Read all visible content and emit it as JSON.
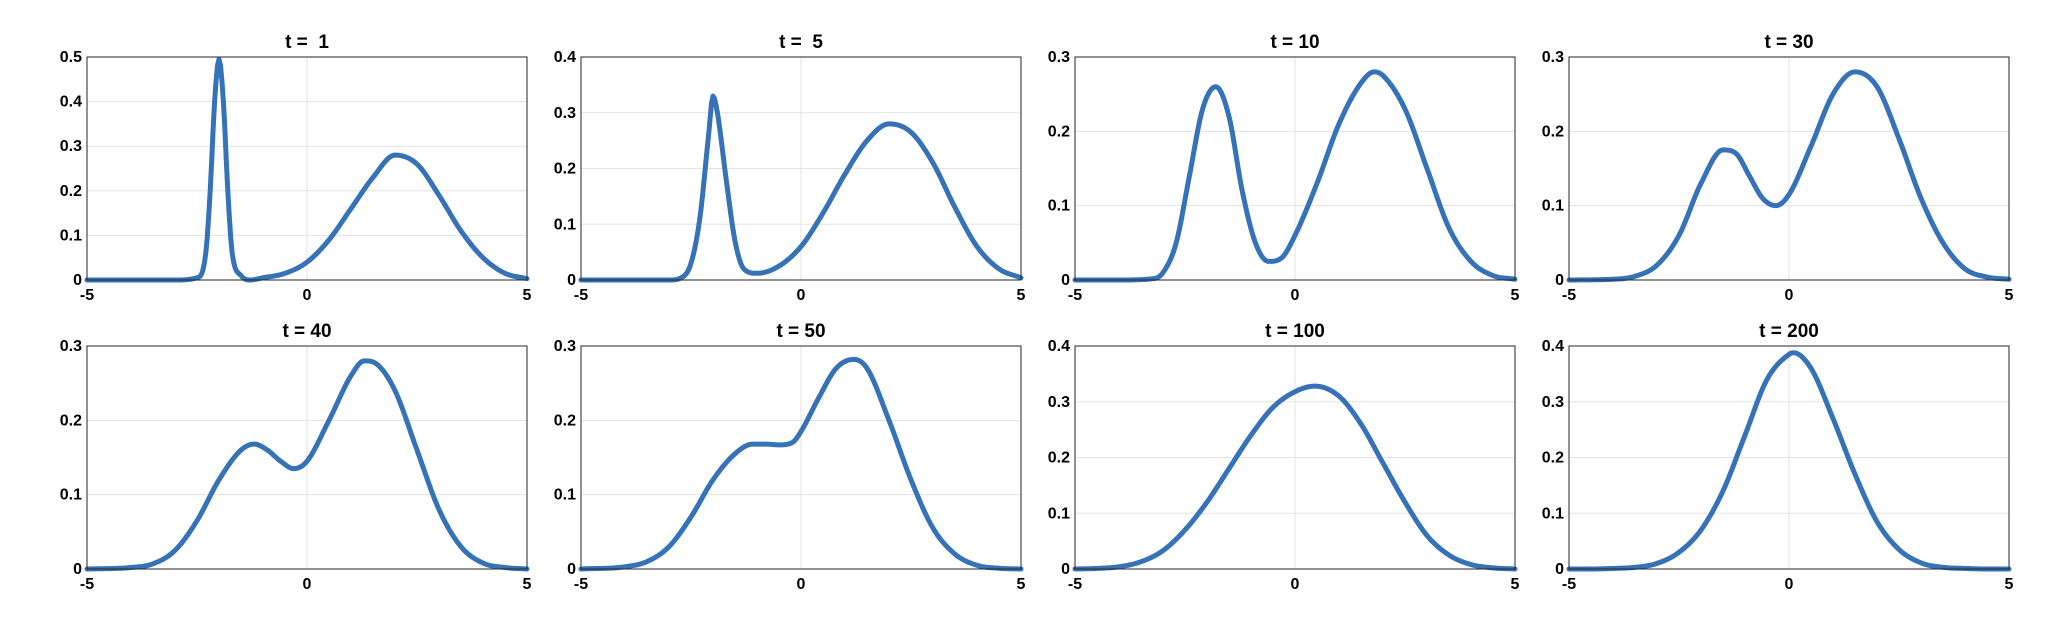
{
  "colors": {
    "line": "#3572B8"
  },
  "chart_data": [
    {
      "type": "line",
      "title": "t =  1",
      "xlim": [
        -5,
        5
      ],
      "ylim": [
        0,
        0.5
      ],
      "xticks": [
        "-5",
        "0",
        "5"
      ],
      "yticks": [
        "0",
        "0.1",
        "0.2",
        "0.3",
        "0.4",
        "0.5"
      ],
      "grid": true,
      "series": [
        {
          "x": [
            -5,
            -4,
            -3,
            -2.5,
            -2.3,
            -2.2,
            -2.1,
            -2,
            -1.9,
            -1.8,
            -1.7,
            -1.5,
            -1.3,
            -1,
            -0.5,
            0,
            0.5,
            1,
            1.5,
            2,
            2.5,
            3,
            3.5,
            4,
            4.5,
            5
          ],
          "y": [
            0,
            0,
            0,
            0.005,
            0.06,
            0.2,
            0.4,
            0.495,
            0.4,
            0.2,
            0.06,
            0.01,
            0,
            0.005,
            0.015,
            0.04,
            0.09,
            0.16,
            0.23,
            0.28,
            0.26,
            0.19,
            0.11,
            0.05,
            0.015,
            0.003
          ]
        }
      ]
    },
    {
      "type": "line",
      "title": "t =  5",
      "xlim": [
        -5,
        5
      ],
      "ylim": [
        0,
        0.4
      ],
      "xticks": [
        "-5",
        "0",
        "5"
      ],
      "yticks": [
        "0",
        "0.1",
        "0.2",
        "0.3",
        "0.4"
      ],
      "grid": true,
      "series": [
        {
          "x": [
            -5,
            -4,
            -3,
            -2.7,
            -2.5,
            -2.3,
            -2.1,
            -2,
            -1.9,
            -1.7,
            -1.5,
            -1.3,
            -1,
            -0.5,
            0,
            0.5,
            1,
            1.5,
            2,
            2.5,
            3,
            3.5,
            4,
            4.5,
            5
          ],
          "y": [
            0,
            0,
            0,
            0.005,
            0.03,
            0.11,
            0.26,
            0.33,
            0.3,
            0.18,
            0.07,
            0.02,
            0.012,
            0.025,
            0.06,
            0.12,
            0.19,
            0.25,
            0.28,
            0.265,
            0.21,
            0.13,
            0.06,
            0.02,
            0.004
          ]
        }
      ]
    },
    {
      "type": "line",
      "title": "t = 10",
      "xlim": [
        -5,
        5
      ],
      "ylim": [
        0,
        0.3
      ],
      "xticks": [
        "-5",
        "0",
        "5"
      ],
      "yticks": [
        "0",
        "0.1",
        "0.2",
        "0.3"
      ],
      "grid": true,
      "series": [
        {
          "x": [
            -5,
            -4,
            -3.2,
            -3,
            -2.7,
            -2.4,
            -2.1,
            -1.8,
            -1.5,
            -1.2,
            -0.9,
            -0.6,
            -0.3,
            0,
            0.5,
            1,
            1.5,
            1.8,
            2,
            2.5,
            3,
            3.5,
            4,
            4.5,
            5
          ],
          "y": [
            0,
            0,
            0.002,
            0.01,
            0.05,
            0.14,
            0.23,
            0.26,
            0.22,
            0.12,
            0.05,
            0.025,
            0.03,
            0.06,
            0.13,
            0.21,
            0.265,
            0.28,
            0.275,
            0.23,
            0.15,
            0.07,
            0.025,
            0.006,
            0.001
          ]
        }
      ]
    },
    {
      "type": "line",
      "title": "t = 30",
      "xlim": [
        -5,
        5
      ],
      "ylim": [
        0,
        0.3
      ],
      "xticks": [
        "-5",
        "0",
        "5"
      ],
      "yticks": [
        "0",
        "0.1",
        "0.2",
        "0.3"
      ],
      "grid": true,
      "series": [
        {
          "x": [
            -5,
            -4,
            -3.5,
            -3,
            -2.5,
            -2,
            -1.5,
            -1.2,
            -0.9,
            -0.6,
            -0.3,
            0,
            0.5,
            1,
            1.5,
            2,
            2.5,
            3,
            3.5,
            4,
            4.5,
            5
          ],
          "y": [
            0,
            0.001,
            0.005,
            0.02,
            0.06,
            0.13,
            0.175,
            0.17,
            0.14,
            0.11,
            0.1,
            0.115,
            0.18,
            0.25,
            0.28,
            0.26,
            0.19,
            0.11,
            0.05,
            0.015,
            0.004,
            0.001
          ]
        }
      ]
    },
    {
      "type": "line",
      "title": "t = 40",
      "xlim": [
        -5,
        5
      ],
      "ylim": [
        0,
        0.3
      ],
      "xticks": [
        "-5",
        "0",
        "5"
      ],
      "yticks": [
        "0",
        "0.1",
        "0.2",
        "0.3"
      ],
      "grid": true,
      "series": [
        {
          "x": [
            -5,
            -4,
            -3.5,
            -3,
            -2.5,
            -2,
            -1.5,
            -1.2,
            -0.9,
            -0.6,
            -0.3,
            0,
            0.5,
            1,
            1.3,
            1.6,
            2,
            2.5,
            3,
            3.5,
            4,
            4.5,
            5
          ],
          "y": [
            0,
            0.002,
            0.007,
            0.025,
            0.065,
            0.12,
            0.16,
            0.168,
            0.16,
            0.145,
            0.135,
            0.145,
            0.2,
            0.26,
            0.28,
            0.275,
            0.24,
            0.16,
            0.08,
            0.03,
            0.008,
            0.002,
            0
          ]
        }
      ]
    },
    {
      "type": "line",
      "title": "t = 50",
      "xlim": [
        -5,
        5
      ],
      "ylim": [
        0,
        0.3
      ],
      "xticks": [
        "-5",
        "0",
        "5"
      ],
      "yticks": [
        "0",
        "0.1",
        "0.2",
        "0.3"
      ],
      "grid": true,
      "series": [
        {
          "x": [
            -5,
            -4,
            -3.5,
            -3,
            -2.5,
            -2,
            -1.5,
            -1.1,
            -0.8,
            -0.5,
            -0.2,
            0,
            0.4,
            0.8,
            1.2,
            1.5,
            2,
            2.5,
            3,
            3.5,
            4,
            4.5,
            5
          ],
          "y": [
            0,
            0.003,
            0.01,
            0.03,
            0.07,
            0.12,
            0.155,
            0.168,
            0.168,
            0.167,
            0.17,
            0.185,
            0.23,
            0.27,
            0.282,
            0.27,
            0.2,
            0.12,
            0.055,
            0.02,
            0.005,
            0.001,
            0
          ]
        }
      ]
    },
    {
      "type": "line",
      "title": "t = 100",
      "xlim": [
        -5,
        5
      ],
      "ylim": [
        0,
        0.4
      ],
      "xticks": [
        "-5",
        "0",
        "5"
      ],
      "yticks": [
        "0",
        "0.1",
        "0.2",
        "0.3",
        "0.4"
      ],
      "grid": true,
      "series": [
        {
          "x": [
            -5,
            -4.5,
            -4,
            -3.5,
            -3,
            -2.5,
            -2,
            -1.5,
            -1,
            -0.5,
            0,
            0.45,
            1,
            1.5,
            2,
            2.5,
            3,
            3.5,
            4,
            4.5,
            5
          ],
          "y": [
            0,
            0.001,
            0.004,
            0.013,
            0.033,
            0.07,
            0.12,
            0.18,
            0.24,
            0.29,
            0.318,
            0.328,
            0.31,
            0.26,
            0.19,
            0.12,
            0.06,
            0.025,
            0.008,
            0.002,
            0
          ]
        }
      ]
    },
    {
      "type": "line",
      "title": "t = 200",
      "xlim": [
        -5,
        5
      ],
      "ylim": [
        0,
        0.4
      ],
      "xticks": [
        "-5",
        "0",
        "5"
      ],
      "yticks": [
        "0",
        "0.1",
        "0.2",
        "0.3",
        "0.4"
      ],
      "grid": true,
      "series": [
        {
          "x": [
            -5,
            -4.5,
            -4,
            -3.5,
            -3,
            -2.5,
            -2,
            -1.5,
            -1,
            -0.5,
            0,
            0.1,
            0.5,
            1,
            1.5,
            2,
            2.5,
            3,
            3.5,
            4,
            4.5,
            5
          ],
          "y": [
            0,
            0,
            0.001,
            0.003,
            0.01,
            0.03,
            0.07,
            0.14,
            0.24,
            0.34,
            0.385,
            0.388,
            0.36,
            0.27,
            0.17,
            0.085,
            0.035,
            0.011,
            0.003,
            0.001,
            0,
            0
          ]
        }
      ]
    }
  ]
}
